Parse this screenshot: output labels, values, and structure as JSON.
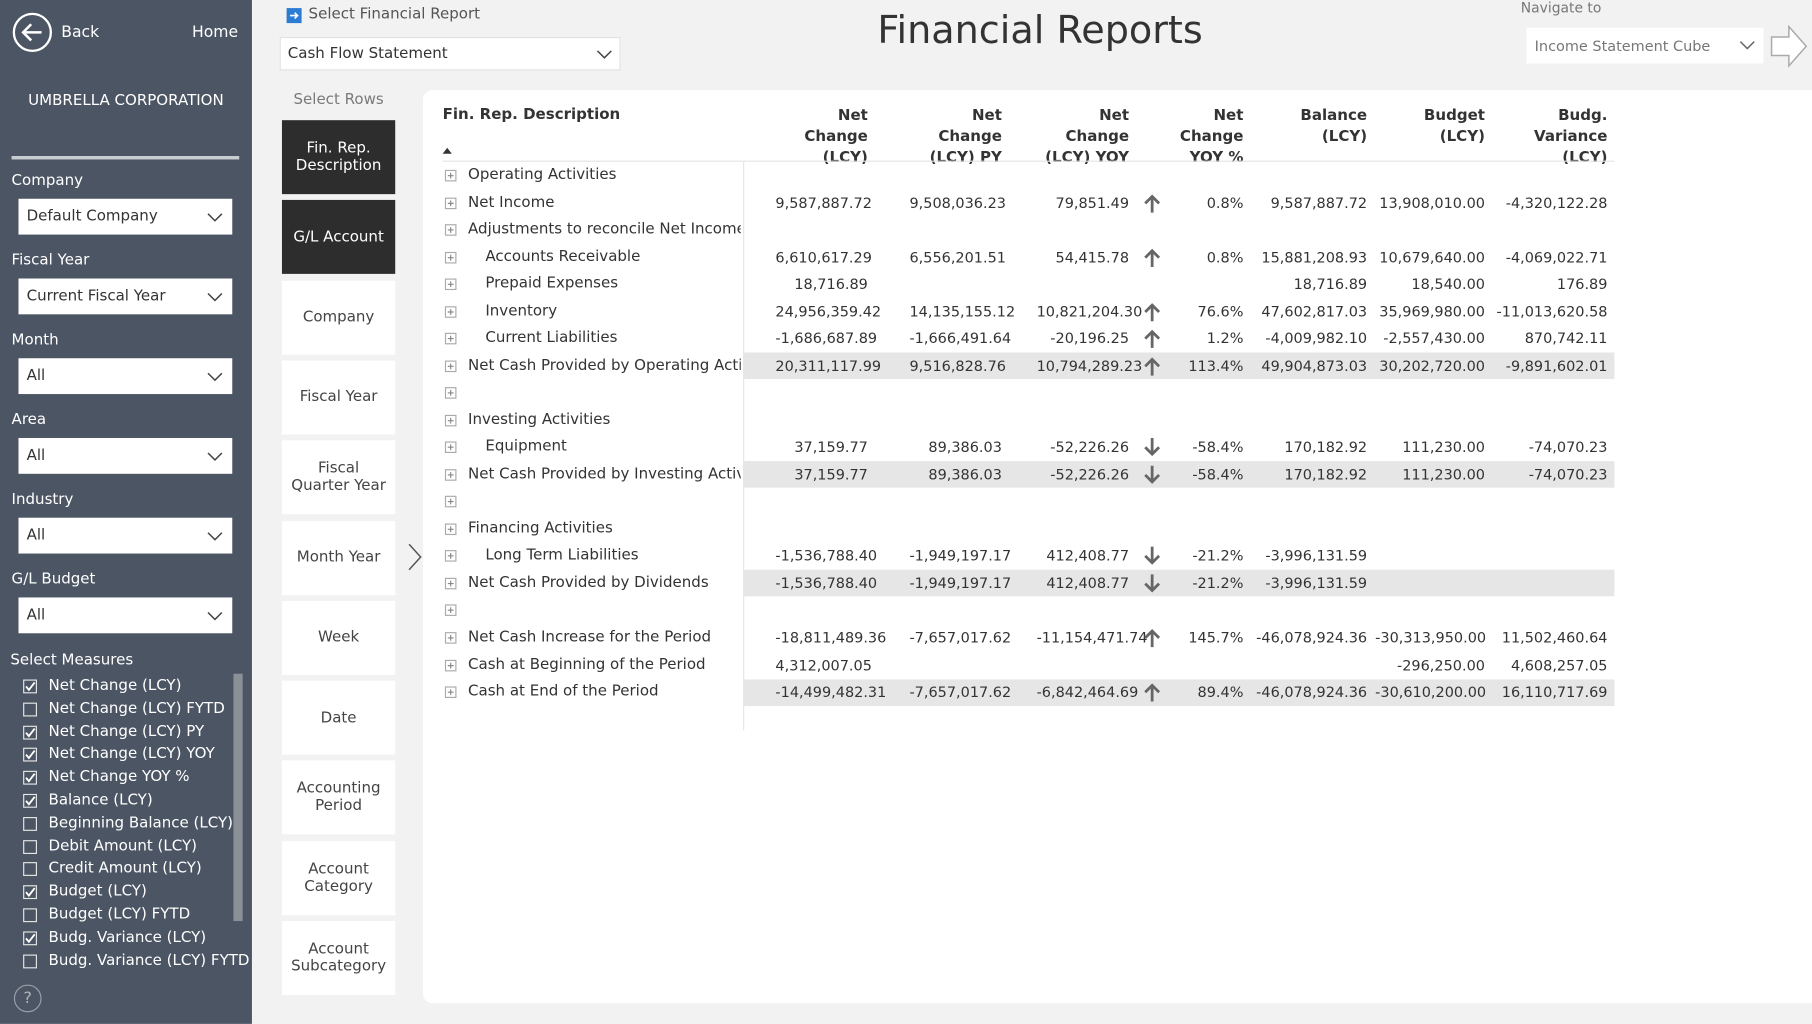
{
  "sidebar": {
    "back": "Back",
    "home": "Home",
    "company": "UMBRELLA CORPORATION",
    "filters": [
      {
        "label": "Company",
        "value": "Default Company"
      },
      {
        "label": "Fiscal Year",
        "value": "Current Fiscal Year"
      },
      {
        "label": "Month",
        "value": "All"
      },
      {
        "label": "Area",
        "value": "All"
      },
      {
        "label": "Industry",
        "value": "All"
      },
      {
        "label": "G/L Budget",
        "value": "All"
      }
    ],
    "measures_title": "Select Measures",
    "measures": [
      {
        "label": "Net Change (LCY)",
        "checked": true
      },
      {
        "label": "Net Change (LCY) FYTD",
        "checked": false
      },
      {
        "label": "Net Change (LCY) PY",
        "checked": true
      },
      {
        "label": "Net Change (LCY) YOY",
        "checked": true
      },
      {
        "label": "Net Change YOY %",
        "checked": true
      },
      {
        "label": "Balance (LCY)",
        "checked": true
      },
      {
        "label": "Beginning Balance (LCY)",
        "checked": false
      },
      {
        "label": "Debit Amount (LCY)",
        "checked": false
      },
      {
        "label": "Credit Amount (LCY)",
        "checked": false
      },
      {
        "label": "Budget (LCY)",
        "checked": true
      },
      {
        "label": "Budget (LCY) FYTD",
        "checked": false
      },
      {
        "label": "Budg. Variance (LCY)",
        "checked": true
      },
      {
        "label": "Budg. Variance (LCY) FYTD",
        "checked": false
      }
    ],
    "help": "?"
  },
  "header": {
    "report_label": "Select Financial Report",
    "report_value": "Cash Flow Statement",
    "title": "Financial Reports",
    "navigate_label": "Navigate to",
    "navigate_value": "Income Statement Cube"
  },
  "rows_panel": {
    "title": "Select Rows",
    "items": [
      {
        "label": "Fin. Rep. Description",
        "selected": true
      },
      {
        "label": "G/L Account",
        "selected": true
      },
      {
        "label": "Company",
        "selected": false
      },
      {
        "label": "Fiscal Year",
        "selected": false
      },
      {
        "label": "Fiscal Quarter Year",
        "selected": false
      },
      {
        "label": "Month Year",
        "selected": false
      },
      {
        "label": "Week",
        "selected": false
      },
      {
        "label": "Date",
        "selected": false
      },
      {
        "label": "Accounting Period",
        "selected": false
      },
      {
        "label": "Account Category",
        "selected": false
      },
      {
        "label": "Account Subcategory",
        "selected": false
      }
    ]
  },
  "table": {
    "columns": [
      "Fin. Rep. Description",
      "Net Change (LCY)",
      "Net Change (LCY) PY",
      "Net Change (LCY) YOY",
      "Net Change YOY %",
      "Balance (LCY)",
      "Budget (LCY)",
      "Budg. Variance (LCY)"
    ],
    "rows": [
      {
        "description": "Operating Activities",
        "indent": 0,
        "total": false,
        "trend": null,
        "values": [
          null,
          null,
          null,
          null,
          null,
          null,
          null
        ]
      },
      {
        "description": "Net Income",
        "indent": 0,
        "total": false,
        "trend": "up",
        "values": [
          "9,587,887.72",
          "9,508,036.23",
          "79,851.49",
          "0.8%",
          "9,587,887.72",
          "13,908,010.00",
          "-4,320,122.28"
        ]
      },
      {
        "description": "Adjustments to reconcile Net Income ...",
        "indent": 0,
        "total": false,
        "trend": null,
        "values": [
          null,
          null,
          null,
          null,
          null,
          null,
          null
        ]
      },
      {
        "description": "Accounts Receivable",
        "indent": 1,
        "total": false,
        "trend": "up",
        "values": [
          "6,610,617.29",
          "6,556,201.51",
          "54,415.78",
          "0.8%",
          "15,881,208.93",
          "10,679,640.00",
          "-4,069,022.71"
        ]
      },
      {
        "description": "Prepaid Expenses",
        "indent": 1,
        "total": false,
        "trend": null,
        "values": [
          "18,716.89",
          null,
          null,
          null,
          "18,716.89",
          "18,540.00",
          "176.89"
        ]
      },
      {
        "description": "Inventory",
        "indent": 1,
        "total": false,
        "trend": "up",
        "values": [
          "24,956,359.42",
          "14,135,155.12",
          "10,821,204.30",
          "76.6%",
          "47,602,817.03",
          "35,969,980.00",
          "-11,013,620.58"
        ]
      },
      {
        "description": "Current Liabilities",
        "indent": 1,
        "total": false,
        "trend": "up",
        "values": [
          "-1,686,687.89",
          "-1,666,491.64",
          "-20,196.25",
          "1.2%",
          "-4,009,982.10",
          "-2,557,430.00",
          "870,742.11"
        ]
      },
      {
        "description": "Net Cash Provided by Operating Activ...",
        "indent": 0,
        "total": true,
        "trend": "up",
        "values": [
          "20,311,117.99",
          "9,516,828.76",
          "10,794,289.23",
          "113.4%",
          "49,904,873.03",
          "30,202,720.00",
          "-9,891,602.01"
        ]
      },
      {
        "description": null,
        "indent": 0,
        "total": false,
        "trend": null,
        "values": [
          null,
          null,
          null,
          null,
          null,
          null,
          null
        ]
      },
      {
        "description": "Investing Activities",
        "indent": 0,
        "total": false,
        "trend": null,
        "values": [
          null,
          null,
          null,
          null,
          null,
          null,
          null
        ]
      },
      {
        "description": "Equipment",
        "indent": 1,
        "total": false,
        "trend": "down",
        "values": [
          "37,159.77",
          "89,386.03",
          "-52,226.26",
          "-58.4%",
          "170,182.92",
          "111,230.00",
          "-74,070.23"
        ]
      },
      {
        "description": "Net Cash Provided by Investing Activit...",
        "indent": 0,
        "total": true,
        "trend": "down",
        "values": [
          "37,159.77",
          "89,386.03",
          "-52,226.26",
          "-58.4%",
          "170,182.92",
          "111,230.00",
          "-74,070.23"
        ]
      },
      {
        "description": null,
        "indent": 0,
        "total": false,
        "trend": null,
        "values": [
          null,
          null,
          null,
          null,
          null,
          null,
          null
        ]
      },
      {
        "description": "Financing Activities",
        "indent": 0,
        "total": false,
        "trend": null,
        "values": [
          null,
          null,
          null,
          null,
          null,
          null,
          null
        ]
      },
      {
        "description": "Long Term Liabilities",
        "indent": 1,
        "total": false,
        "trend": "down",
        "values": [
          "-1,536,788.40",
          "-1,949,197.17",
          "412,408.77",
          "-21.2%",
          "-3,996,131.59",
          null,
          null
        ]
      },
      {
        "description": "Net Cash Provided by Dividends",
        "indent": 0,
        "total": true,
        "trend": "down",
        "values": [
          "-1,536,788.40",
          "-1,949,197.17",
          "412,408.77",
          "-21.2%",
          "-3,996,131.59",
          null,
          null
        ]
      },
      {
        "description": null,
        "indent": 0,
        "total": false,
        "trend": null,
        "values": [
          null,
          null,
          null,
          null,
          null,
          null,
          null
        ]
      },
      {
        "description": "Net Cash Increase for the Period",
        "indent": 0,
        "total": false,
        "trend": "up",
        "values": [
          "-18,811,489.36",
          "-7,657,017.62",
          "-11,154,471.74",
          "145.7%",
          "-46,078,924.36",
          "-30,313,950.00",
          "11,502,460.64"
        ]
      },
      {
        "description": "Cash at Beginning of the Period",
        "indent": 0,
        "total": false,
        "trend": null,
        "values": [
          "4,312,007.05",
          null,
          null,
          null,
          null,
          "-296,250.00",
          "4,608,257.05"
        ]
      },
      {
        "description": "Cash at End of the Period",
        "indent": 0,
        "total": true,
        "trend": "up",
        "values": [
          "-14,499,482.31",
          "-7,657,017.62",
          "-6,842,464.69",
          "89.4%",
          "-46,078,924.36",
          "-30,610,200.00",
          "16,110,717.69"
        ]
      }
    ]
  }
}
